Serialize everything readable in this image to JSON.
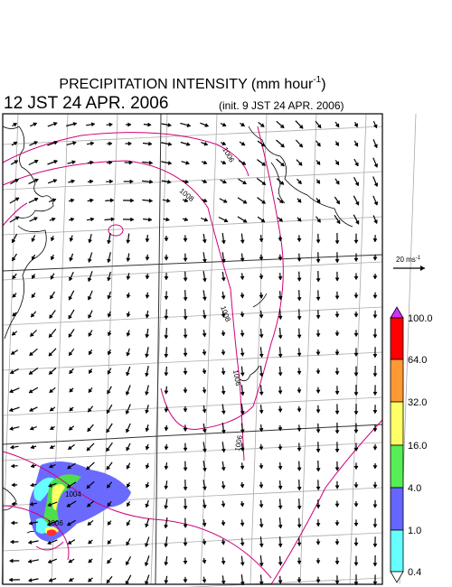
{
  "header": {
    "title": {
      "text": "PRECIPITATION INTENSITY (mm hour",
      "superscript": "-1",
      "close": ")"
    },
    "valid_time": "12 JST 24 APR. 2006",
    "init_time": "(init. 9 JST 24 APR. 2006)"
  },
  "wind_scale": {
    "text": "20 ms",
    "superscript": "-1"
  },
  "colorbar": {
    "labels": [
      "100.0",
      "64.0",
      "32.0",
      "16.0",
      "4.0",
      "1.0",
      "0.4"
    ]
  },
  "contours": {
    "labels": [
      "1006",
      "1008",
      "1008",
      "1006",
      "1006",
      "1004",
      "1006"
    ]
  }
}
